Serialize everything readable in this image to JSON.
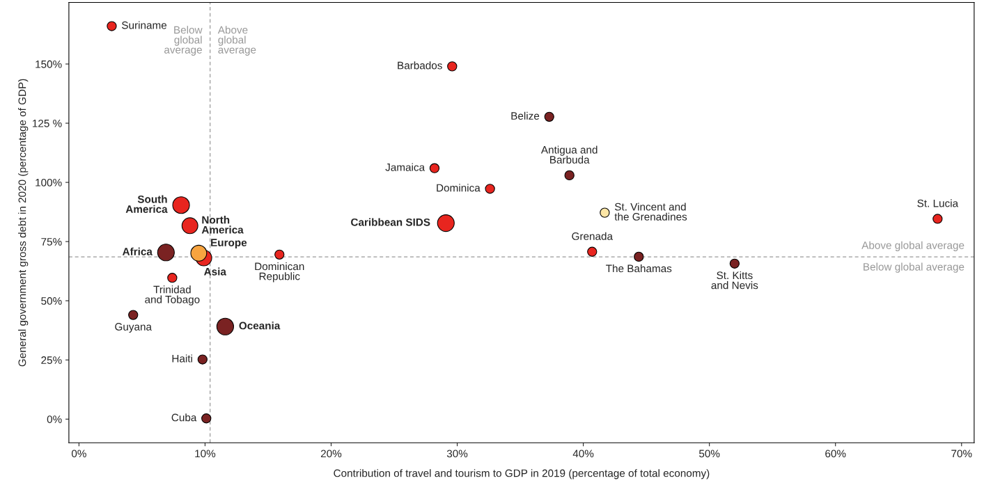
{
  "chart_data": {
    "type": "bubble",
    "xlabel": "Contribution of travel and tourism to GDP in 2019 (percentage of total economy)",
    "ylabel": "General government gross debt in 2020 (percentage of GDP)",
    "xlim": [
      -0.8,
      71
    ],
    "ylim": [
      -10,
      176
    ],
    "xticks": [
      {
        "value": 0,
        "label": "0%"
      },
      {
        "value": 10,
        "label": "10%"
      },
      {
        "value": 20,
        "label": "20%"
      },
      {
        "value": 30,
        "label": "30%"
      },
      {
        "value": 40,
        "label": "40%"
      },
      {
        "value": 50,
        "label": "50%"
      },
      {
        "value": 60,
        "label": "60%"
      },
      {
        "value": 70,
        "label": "70%"
      }
    ],
    "yticks": [
      {
        "value": 0,
        "label": "0%"
      },
      {
        "value": 25,
        "label": "25%"
      },
      {
        "value": 50,
        "label": "50%"
      },
      {
        "value": 75,
        "label": "75%"
      },
      {
        "value": 100,
        "label": "100%"
      },
      {
        "value": 125,
        "label": "125 %"
      },
      {
        "value": 150,
        "label": "150%"
      }
    ],
    "grid": false,
    "legend": false,
    "series": [
      {
        "name": "Suriname",
        "color": "#e8251f",
        "x": [
          2.6
        ],
        "values": [
          166
        ],
        "sizes": [
          0.3
        ]
      },
      {
        "name": "Barbados",
        "color": "#e8251f",
        "x": [
          29.6
        ],
        "values": [
          149
        ],
        "sizes": [
          0.3
        ]
      },
      {
        "name": "Belize",
        "color": "#7a2222",
        "x": [
          37.3
        ],
        "values": [
          127.7
        ],
        "sizes": [
          0.3
        ]
      },
      {
        "name": "Antigua and\nBarbuda",
        "color": "#7a2222",
        "x": [
          38.9
        ],
        "values": [
          103
        ],
        "sizes": [
          0.3
        ]
      },
      {
        "name": "Jamaica",
        "color": "#e8251f",
        "x": [
          28.2
        ],
        "values": [
          106
        ],
        "sizes": [
          0.3
        ]
      },
      {
        "name": "Dominica",
        "color": "#e8251f",
        "x": [
          32.6
        ],
        "values": [
          97.3
        ],
        "sizes": [
          0.3
        ]
      },
      {
        "name": "St. Vincent and\nthe Grenadines",
        "color": "#fde6a6",
        "x": [
          41.7
        ],
        "values": [
          87.2
        ],
        "sizes": [
          0.3
        ]
      },
      {
        "name": "St. Lucia",
        "color": "#e8251f",
        "x": [
          68.1
        ],
        "values": [
          84.6
        ],
        "sizes": [
          0.3
        ]
      },
      {
        "name": "Caribbean SIDS",
        "color": "#e8251f",
        "x": [
          29.1
        ],
        "values": [
          82.8
        ],
        "sizes": [
          1
        ]
      },
      {
        "name": "Grenada",
        "color": "#e8251f",
        "x": [
          40.7
        ],
        "values": [
          70.7
        ],
        "sizes": [
          0.3
        ]
      },
      {
        "name": "The Bahamas",
        "color": "#7a2222",
        "x": [
          44.4
        ],
        "values": [
          68.6
        ],
        "sizes": [
          0.3
        ]
      },
      {
        "name": "St. Kitts\nand Nevis",
        "color": "#7a2222",
        "x": [
          52.0
        ],
        "values": [
          65.7
        ],
        "sizes": [
          0.3
        ]
      },
      {
        "name": "Dominican\nRepublic",
        "color": "#e8251f",
        "x": [
          15.9
        ],
        "values": [
          69.5
        ],
        "sizes": [
          0.3
        ]
      },
      {
        "name": "South\nAmerica",
        "color": "#e8251f",
        "x": [
          8.1
        ],
        "values": [
          90.4
        ],
        "sizes": [
          1
        ]
      },
      {
        "name": "North\nAmerica",
        "color": "#e8251f",
        "x": [
          8.8
        ],
        "values": [
          81.7
        ],
        "sizes": [
          0.9
        ]
      },
      {
        "name": "Africa",
        "color": "#7a2222",
        "x": [
          6.9
        ],
        "values": [
          70.4
        ],
        "sizes": [
          1
        ]
      },
      {
        "name": "Asia",
        "color": "#e8251f",
        "x": [
          9.9
        ],
        "values": [
          68.1
        ],
        "sizes": [
          0.9
        ]
      },
      {
        "name": "Europe",
        "color": "#f7a440",
        "x": [
          9.5
        ],
        "values": [
          70.1
        ],
        "sizes": [
          0.9
        ]
      },
      {
        "name": "Trinidad\nand Tobago",
        "color": "#e8251f",
        "x": [
          7.4
        ],
        "values": [
          59.7
        ],
        "sizes": [
          0.3
        ]
      },
      {
        "name": "Guyana",
        "color": "#7a2222",
        "x": [
          4.3
        ],
        "values": [
          44.0
        ],
        "sizes": [
          0.3
        ]
      },
      {
        "name": "Oceania",
        "color": "#7a2222",
        "x": [
          11.6
        ],
        "values": [
          39.1
        ],
        "sizes": [
          1
        ]
      },
      {
        "name": "Haiti",
        "color": "#7a2222",
        "x": [
          9.8
        ],
        "values": [
          25.2
        ],
        "sizes": [
          0.3
        ]
      },
      {
        "name": "Cuba",
        "color": "#7a2222",
        "x": [
          10.1
        ],
        "values": [
          0.3
        ],
        "sizes": [
          0.3
        ]
      }
    ],
    "ref_lines": [
      {
        "axis": "x",
        "value": 10.4,
        "color": "#999999",
        "line_style": "dashed"
      },
      {
        "axis": "y",
        "value": 68.5,
        "color": "#999999",
        "line_style": "dashed"
      }
    ],
    "annotations": [
      "Below\nglobal\naverage",
      "Above\nglobal\naverage",
      "Above global average",
      "Below global average"
    ]
  }
}
